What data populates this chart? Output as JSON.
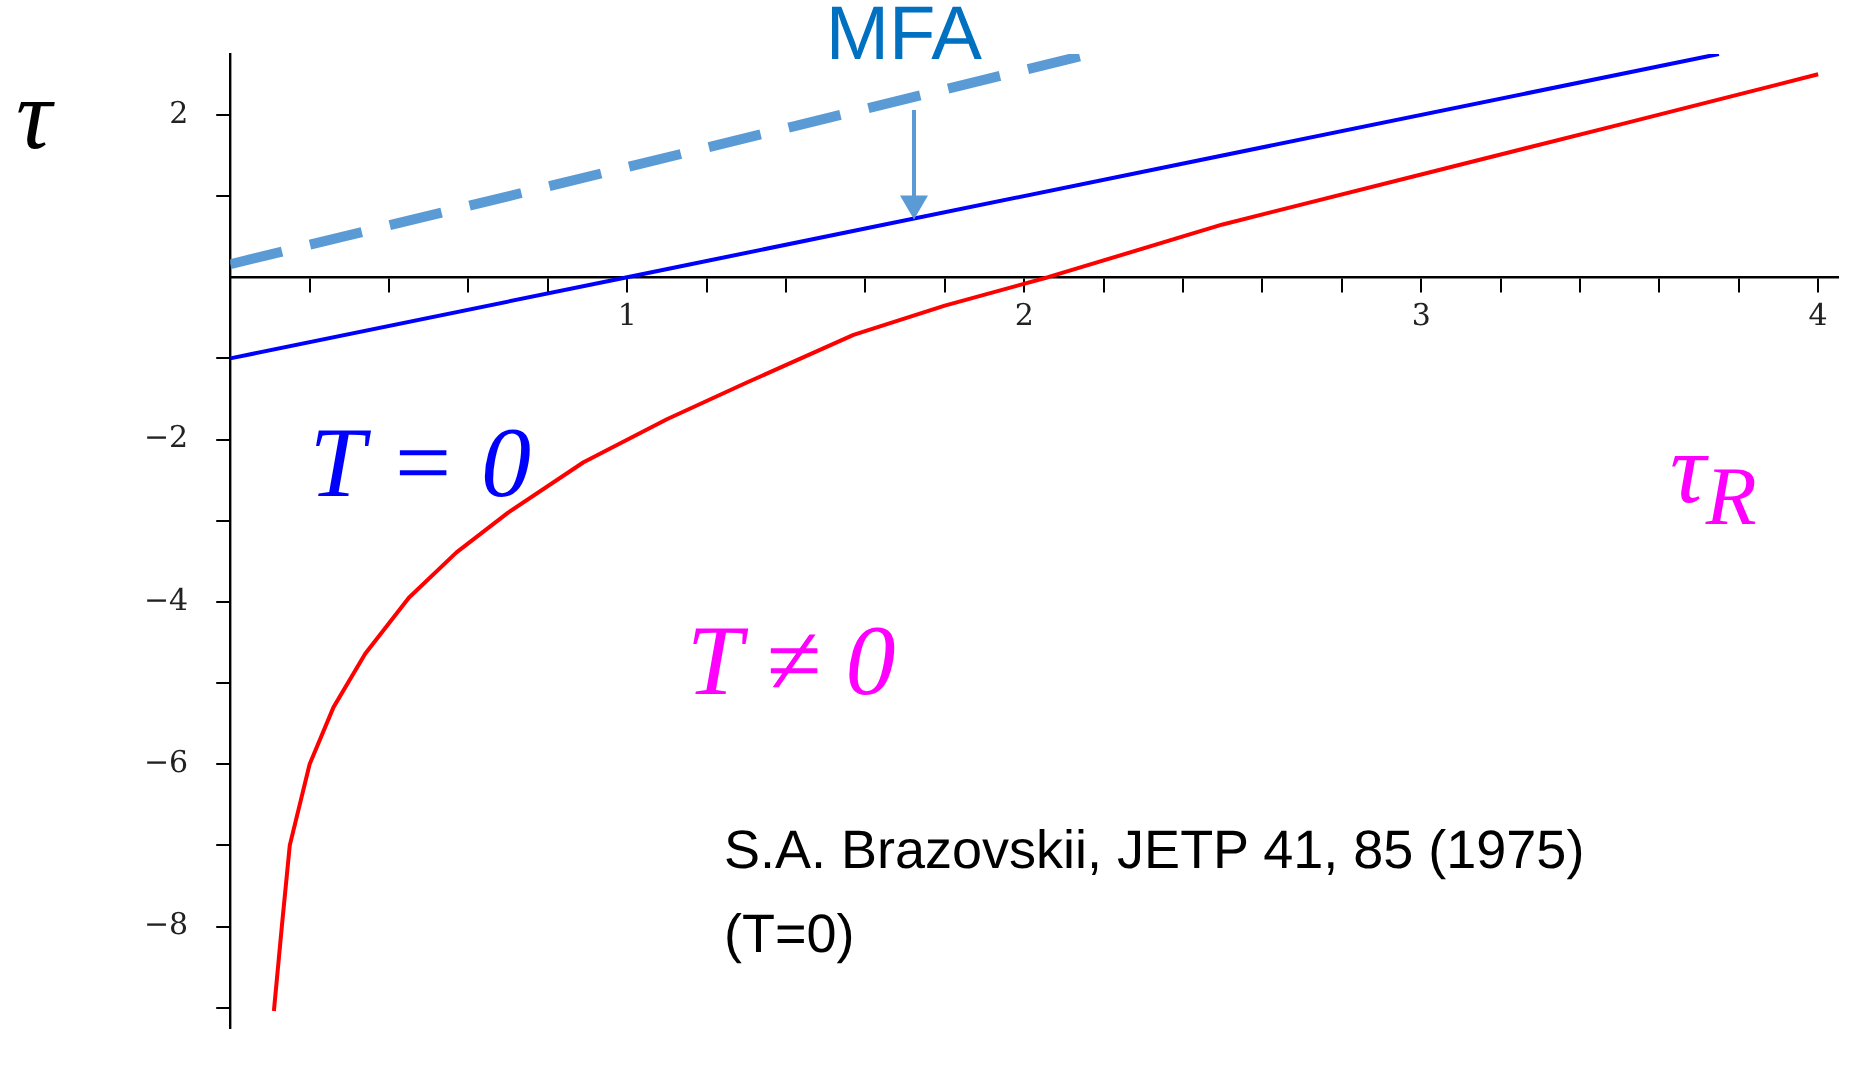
{
  "chart_data": {
    "type": "line",
    "xlabel": "τ$_{R}$",
    "ylabel": "τ",
    "xlim": [
      0,
      4.05
    ],
    "ylim": [
      -9.25,
      2.75
    ],
    "xticks": [
      {
        "value": 0.2,
        "label": null
      },
      {
        "value": 0.4,
        "label": null
      },
      {
        "value": 0.6,
        "label": null
      },
      {
        "value": 0.8,
        "label": null
      },
      1,
      {
        "value": 1.2,
        "label": null
      },
      {
        "value": 1.4,
        "label": null
      },
      {
        "value": 1.6,
        "label": null
      },
      {
        "value": 1.8,
        "label": null
      },
      2,
      {
        "value": 2.2,
        "label": null
      },
      {
        "value": 2.4,
        "label": null
      },
      {
        "value": 2.6,
        "label": null
      },
      {
        "value": 2.8,
        "label": null
      },
      3,
      {
        "value": 3.2,
        "label": null
      },
      {
        "value": 3.4,
        "label": null
      },
      {
        "value": 3.6,
        "label": null
      },
      {
        "value": 3.8,
        "label": null
      },
      4
    ],
    "yticks": [
      {
        "value": -9,
        "label": null
      },
      {
        "value": -8,
        "label": "−8"
      },
      {
        "value": -7,
        "label": null
      },
      {
        "value": -6,
        "label": "−6"
      },
      {
        "value": -5,
        "label": null
      },
      {
        "value": -4,
        "label": "−4"
      },
      {
        "value": -3,
        "label": null
      },
      {
        "value": -2,
        "label": "−2"
      },
      {
        "value": -1,
        "label": null
      },
      {
        "value": 1,
        "label": null
      },
      2
    ],
    "grid": false,
    "legend": false,
    "marker": "none",
    "series": [
      {
        "name": "MFA",
        "color": "#5b9bd5",
        "line_style": "dashed",
        "x": [
          0,
          2.14
        ],
        "values": [
          0.16,
          2.72
        ]
      },
      {
        "name": "T = 0",
        "color": "#0000ff",
        "line_style": "solid",
        "x": [
          0,
          1,
          3.75
        ],
        "values": [
          -1,
          0,
          2.75
        ]
      },
      {
        "name": "T ≠ 0",
        "color": "#ff0000",
        "line_style": "solid",
        "x": [
          0.11,
          0.13,
          0.15,
          0.2,
          0.26,
          0.34,
          0.45,
          0.57,
          0.7,
          0.89,
          1.1,
          1.3,
          1.57,
          1.8,
          2.06,
          2.5,
          3.02,
          3.5,
          4
        ],
        "values": [
          -9.04,
          -8.0,
          -7.0,
          -6.0,
          -5.3,
          -4.64,
          -3.95,
          -3.39,
          -2.9,
          -2.28,
          -1.75,
          -1.3,
          -0.71,
          -0.35,
          0,
          0.65,
          1.29,
          1.88,
          2.5
        ]
      }
    ],
    "annotations": [
      "S.A. Brazovskii, JETP 41, 85 (1975)",
      "(T=0)"
    ]
  }
}
